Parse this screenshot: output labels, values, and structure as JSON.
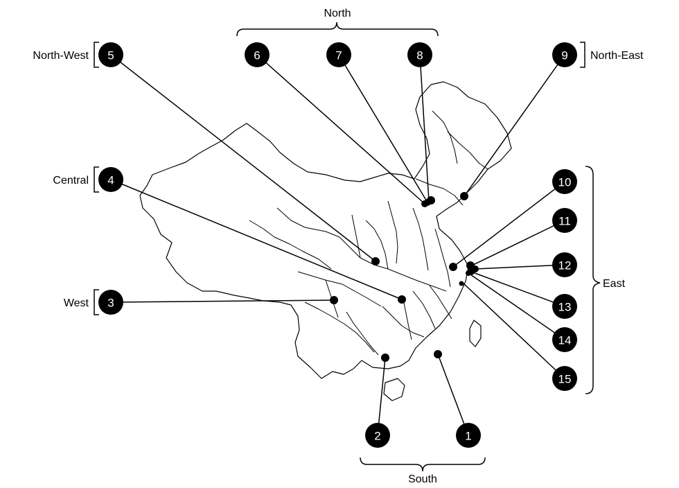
{
  "colors": {
    "marker": "#000000",
    "marker_text": "#ffffff",
    "outline": "#000000",
    "background": "#ffffff"
  },
  "regions": {
    "north": "North",
    "north_west": "North-West",
    "north_east": "North-East",
    "central": "Central",
    "west": "West",
    "east": "East",
    "south": "South"
  },
  "markers": [
    "1",
    "2",
    "3",
    "4",
    "5",
    "6",
    "7",
    "8",
    "9",
    "10",
    "11",
    "12",
    "13",
    "14",
    "15"
  ]
}
